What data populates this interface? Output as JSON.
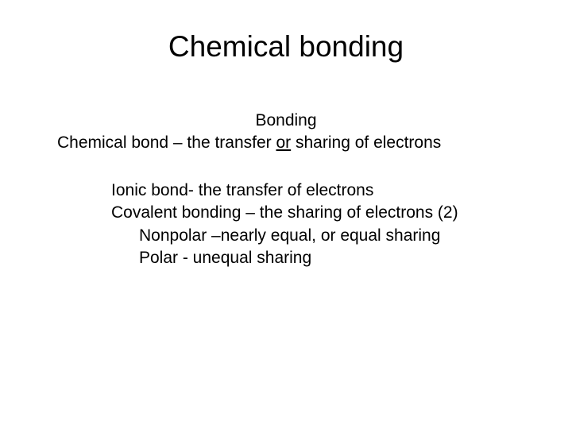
{
  "title": "Chemical bonding",
  "subtitle": "Bonding",
  "definition_prefix": "Chemical bond – the transfer ",
  "definition_underlined": "or",
  "definition_suffix": " sharing of electrons",
  "body": {
    "ionic": "Ionic bond- the transfer of electrons",
    "covalent": "Covalent bonding – the sharing of electrons (2)",
    "nonpolar": "Nonpolar –nearly equal, or equal sharing",
    "polar": "Polar  - unequal sharing"
  },
  "styling": {
    "background_color": "#ffffff",
    "text_color": "#000000",
    "title_fontsize": 37,
    "body_fontsize": 21,
    "font_family": "Arial"
  }
}
